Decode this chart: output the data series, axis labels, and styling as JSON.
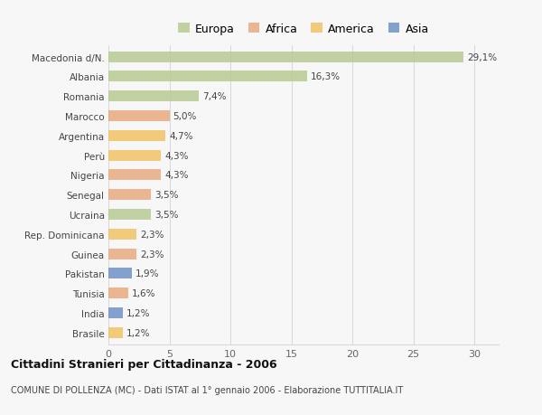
{
  "categories": [
    "Macedonia d/N.",
    "Albania",
    "Romania",
    "Marocco",
    "Argentina",
    "Perù",
    "Nigeria",
    "Senegal",
    "Ucraina",
    "Rep. Dominicana",
    "Guinea",
    "Pakistan",
    "Tunisia",
    "India",
    "Brasile"
  ],
  "values": [
    29.1,
    16.3,
    7.4,
    5.0,
    4.7,
    4.3,
    4.3,
    3.5,
    3.5,
    2.3,
    2.3,
    1.9,
    1.6,
    1.2,
    1.2
  ],
  "labels": [
    "29,1%",
    "16,3%",
    "7,4%",
    "5,0%",
    "4,7%",
    "4,3%",
    "4,3%",
    "3,5%",
    "3,5%",
    "2,3%",
    "2,3%",
    "1,9%",
    "1,6%",
    "1,2%",
    "1,2%"
  ],
  "colors": [
    "#b5c98e",
    "#b5c98e",
    "#b5c98e",
    "#e8a87c",
    "#f0c060",
    "#f0c060",
    "#e8a87c",
    "#e8a87c",
    "#b5c98e",
    "#f0c060",
    "#e8a87c",
    "#6b8ec4",
    "#e8a87c",
    "#6b8ec4",
    "#f0c060"
  ],
  "legend_labels": [
    "Europa",
    "Africa",
    "America",
    "Asia"
  ],
  "legend_colors": [
    "#b5c98e",
    "#e8a87c",
    "#f0c060",
    "#6b8ec4"
  ],
  "title": "Cittadini Stranieri per Cittadinanza - 2006",
  "subtitle": "COMUNE DI POLLENZA (MC) - Dati ISTAT al 1° gennaio 2006 - Elaborazione TUTTITALIA.IT",
  "xlim": [
    0,
    32
  ],
  "xticks": [
    0,
    5,
    10,
    15,
    20,
    25,
    30
  ],
  "bg_color": "#f7f7f7",
  "grid_color": "#d8d8d8",
  "bar_height": 0.55
}
